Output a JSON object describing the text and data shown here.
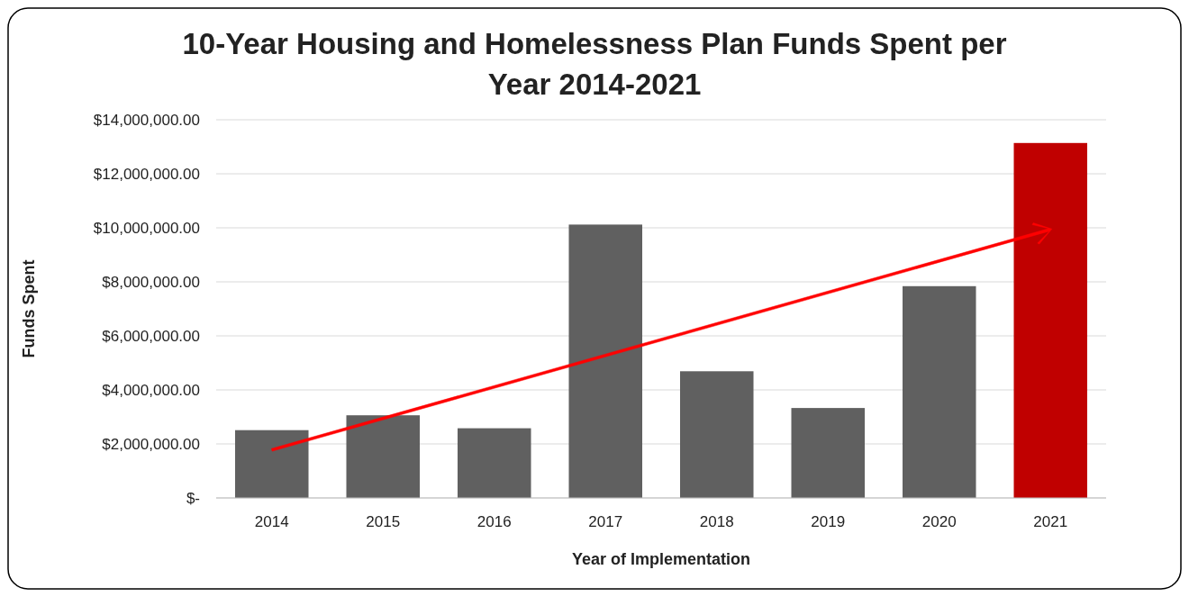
{
  "chart_data": {
    "type": "bar",
    "title": "10-Year Housing and Homelessness Plan Funds Spent per Year 2014-2021",
    "xlabel": "Year of Implementation",
    "ylabel": "Funds Spent",
    "categories": [
      "2014",
      "2015",
      "2016",
      "2017",
      "2018",
      "2019",
      "2020",
      "2021"
    ],
    "values": [
      2510000,
      3060000,
      2580000,
      10120000,
      4690000,
      3330000,
      7840000,
      13140000
    ],
    "colors": [
      "#606060",
      "#606060",
      "#606060",
      "#606060",
      "#606060",
      "#606060",
      "#606060",
      "#c00000"
    ],
    "ylim": [
      0,
      14000000
    ],
    "yticks": [
      {
        "value": 0,
        "label": "$-"
      },
      {
        "value": 2000000,
        "label": "$2,000,000.00"
      },
      {
        "value": 4000000,
        "label": "$4,000,000.00"
      },
      {
        "value": 6000000,
        "label": "$6,000,000.00"
      },
      {
        "value": 8000000,
        "label": "$8,000,000.00"
      },
      {
        "value": 10000000,
        "label": "$10,000,000.00"
      },
      {
        "value": 12000000,
        "label": "$12,000,000.00"
      },
      {
        "value": 14000000,
        "label": "$14,000,000.00"
      }
    ],
    "grid": "y"
  }
}
